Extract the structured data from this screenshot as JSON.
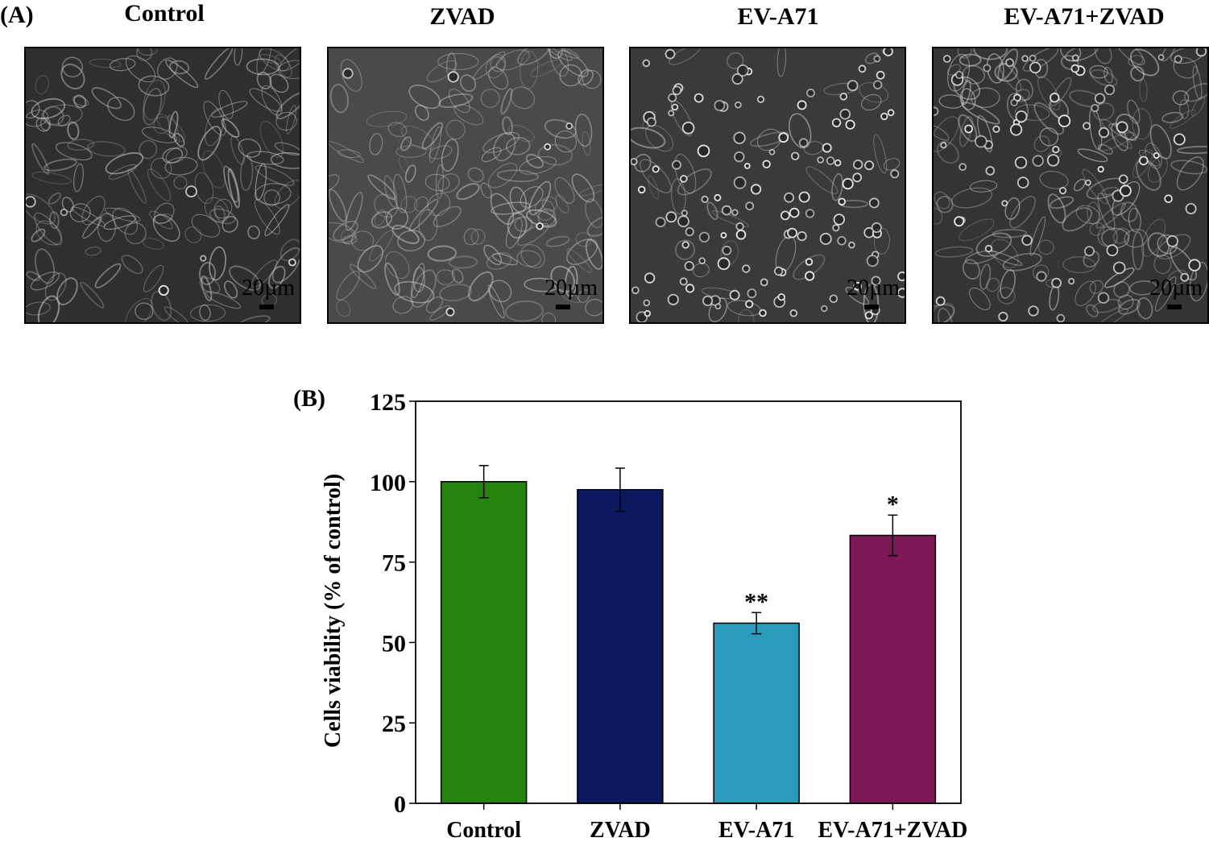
{
  "panel_a": {
    "label": "(A)",
    "images": [
      {
        "title": "Control",
        "scale_label": "20µm",
        "tone": "#2f2f2f"
      },
      {
        "title": "ZVAD",
        "scale_label": "20µm",
        "tone": "#4a4a4a"
      },
      {
        "title": "EV-A71",
        "scale_label": "20µm",
        "tone": "#3a3a3a"
      },
      {
        "title": "EV-A71+ZVAD",
        "scale_label": "20µm",
        "tone": "#343434"
      }
    ]
  },
  "panel_b": {
    "label": "(B)"
  },
  "chart_data": {
    "type": "bar",
    "title": "",
    "xlabel": "",
    "ylabel": "Cells viability (% of control)",
    "categories": [
      "Control",
      "ZVAD",
      "EV-A71",
      "EV-A71+ZVAD"
    ],
    "values": [
      100,
      97.5,
      56,
      83.3
    ],
    "errors": [
      5,
      6.7,
      3.3,
      6.3
    ],
    "significance": [
      "",
      "",
      "**",
      "*"
    ],
    "colors": [
      "#24830f",
      "#0b1a5e",
      "#2b9bbc",
      "#7d1755"
    ],
    "ylim": [
      0,
      125
    ],
    "yticks": [
      0,
      25,
      50,
      75,
      100,
      125
    ],
    "grid": false,
    "legend": "none"
  }
}
